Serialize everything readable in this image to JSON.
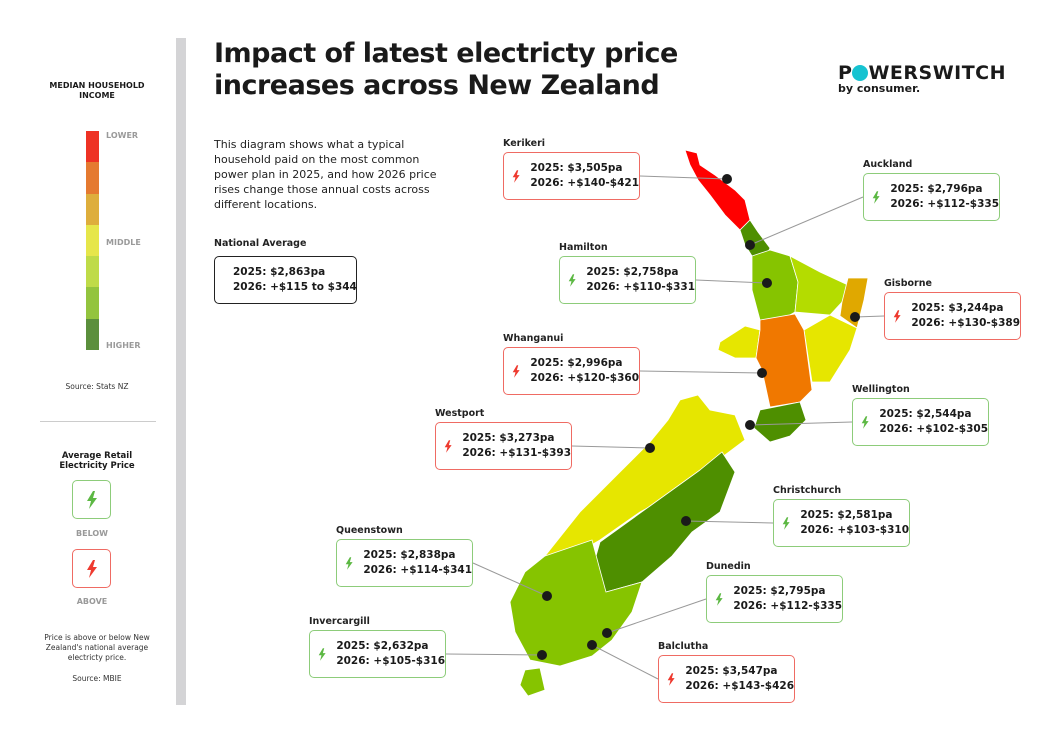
{
  "title": "Impact of latest electricty price increases across New Zealand",
  "intro": "This diagram shows what a typical household paid on the most common power plan in 2025, and how 2026 price rises change those annual costs across different locations.",
  "logo": {
    "main": "POWERSWITCH",
    "sub": "by consumer."
  },
  "income_legend": {
    "title": "MEDIAN HOUSEHOLD INCOME",
    "labels": {
      "lower": "LOWER",
      "middle": "MIDDLE",
      "higher": "HIGHER"
    },
    "colors": [
      "#ee3224",
      "#e57a30",
      "#deae3c",
      "#e6e64a",
      "#bfdb48",
      "#93c43e",
      "#5b8f3c"
    ],
    "source": "Source: Stats NZ"
  },
  "price_legend": {
    "title": "Average Retail Electricity Price",
    "below": "BELOW",
    "above": "ABOVE",
    "note": "Price is above or below New Zealand's national average electricty price.",
    "source": "Source: MBIE",
    "colors": {
      "below": "#5cb843",
      "above": "#ee3a2f"
    }
  },
  "national": {
    "label": "National Average",
    "line1": "2025: $2,863pa",
    "line2": "2026: +$115 to $344"
  },
  "locations": [
    {
      "name": "Kerikeri",
      "line1": "2025: $3,505pa",
      "line2": "2026: +$140-$421",
      "status": "above"
    },
    {
      "name": "Auckland",
      "line1": "2025: $2,796pa",
      "line2": "2026: +$112-$335",
      "status": "below"
    },
    {
      "name": "Hamilton",
      "line1": "2025: $2,758pa",
      "line2": "2026: +$110-$331",
      "status": "below"
    },
    {
      "name": "Gisborne",
      "line1": "2025: $3,244pa",
      "line2": "2026: +$130-$389",
      "status": "above"
    },
    {
      "name": "Whanganui",
      "line1": "2025: $2,996pa",
      "line2": "2026: +$120-$360",
      "status": "above"
    },
    {
      "name": "Wellington",
      "line1": "2025: $2,544pa",
      "line2": "2026: +$102-$305",
      "status": "below"
    },
    {
      "name": "Westport",
      "line1": "2025: $3,273pa",
      "line2": "2026: +$131-$393",
      "status": "above"
    },
    {
      "name": "Christchurch",
      "line1": "2025: $2,581pa",
      "line2": "2026: +$103-$310",
      "status": "below"
    },
    {
      "name": "Queenstown",
      "line1": "2025: $2,838pa",
      "line2": "2026: +$114-$341",
      "status": "below"
    },
    {
      "name": "Dunedin",
      "line1": "2025: $2,795pa",
      "line2": "2026: +$112-$335",
      "status": "below"
    },
    {
      "name": "Invercargill",
      "line1": "2025: $2,632pa",
      "line2": "2026: +$105-$316",
      "status": "below"
    },
    {
      "name": "Balclutha",
      "line1": "2025: $3,547pa",
      "line2": "2026: +$143-$426",
      "status": "above"
    }
  ]
}
